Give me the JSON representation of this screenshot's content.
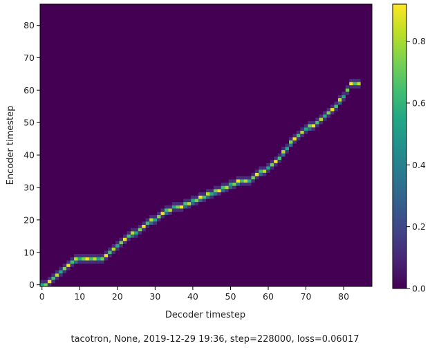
{
  "chart_data": {
    "type": "heatmap",
    "xlabel": "Decoder timestep",
    "ylabel": "Encoder timestep",
    "caption": "tacotron, None, 2019-12-29 19:36, step=228000, loss=0.06017",
    "x_range": [
      0,
      87
    ],
    "y_range": [
      0,
      86
    ],
    "x_ticks": [
      0,
      10,
      20,
      30,
      40,
      50,
      60,
      70,
      80
    ],
    "y_ticks": [
      0,
      10,
      20,
      30,
      40,
      50,
      60,
      70,
      80
    ],
    "colorbar": {
      "colormap": "viridis",
      "range": [
        0,
        0.92
      ],
      "ticks": [
        0.0,
        0.2,
        0.4,
        0.6,
        0.8
      ],
      "tick_labels": [
        "0.0",
        "0.2",
        "0.4",
        "0.6",
        "0.8"
      ]
    },
    "alignment_path": [
      [
        0,
        0
      ],
      [
        1,
        0
      ],
      [
        2,
        1
      ],
      [
        3,
        2
      ],
      [
        4,
        3
      ],
      [
        5,
        4
      ],
      [
        6,
        5
      ],
      [
        7,
        6
      ],
      [
        8,
        7
      ],
      [
        10,
        8
      ],
      [
        12,
        8
      ],
      [
        14,
        8
      ],
      [
        16,
        8
      ],
      [
        17,
        9
      ],
      [
        18,
        10
      ],
      [
        19,
        11
      ],
      [
        21,
        13
      ],
      [
        23,
        15
      ],
      [
        25,
        16
      ],
      [
        27,
        18
      ],
      [
        28,
        19
      ],
      [
        30,
        20
      ],
      [
        32,
        22
      ],
      [
        34,
        23
      ],
      [
        35,
        24
      ],
      [
        37,
        24
      ],
      [
        39,
        25
      ],
      [
        41,
        26
      ],
      [
        43,
        27
      ],
      [
        45,
        28
      ],
      [
        47,
        29
      ],
      [
        49,
        30
      ],
      [
        51,
        31
      ],
      [
        53,
        32
      ],
      [
        55,
        32
      ],
      [
        57,
        34
      ],
      [
        59,
        35
      ],
      [
        61,
        37
      ],
      [
        63,
        39
      ],
      [
        65,
        42
      ],
      [
        67,
        45
      ],
      [
        69,
        47
      ],
      [
        70,
        48
      ],
      [
        72,
        49
      ],
      [
        74,
        51
      ],
      [
        76,
        53
      ],
      [
        78,
        55
      ],
      [
        80,
        58
      ],
      [
        82,
        62
      ],
      [
        84,
        62
      ]
    ]
  }
}
